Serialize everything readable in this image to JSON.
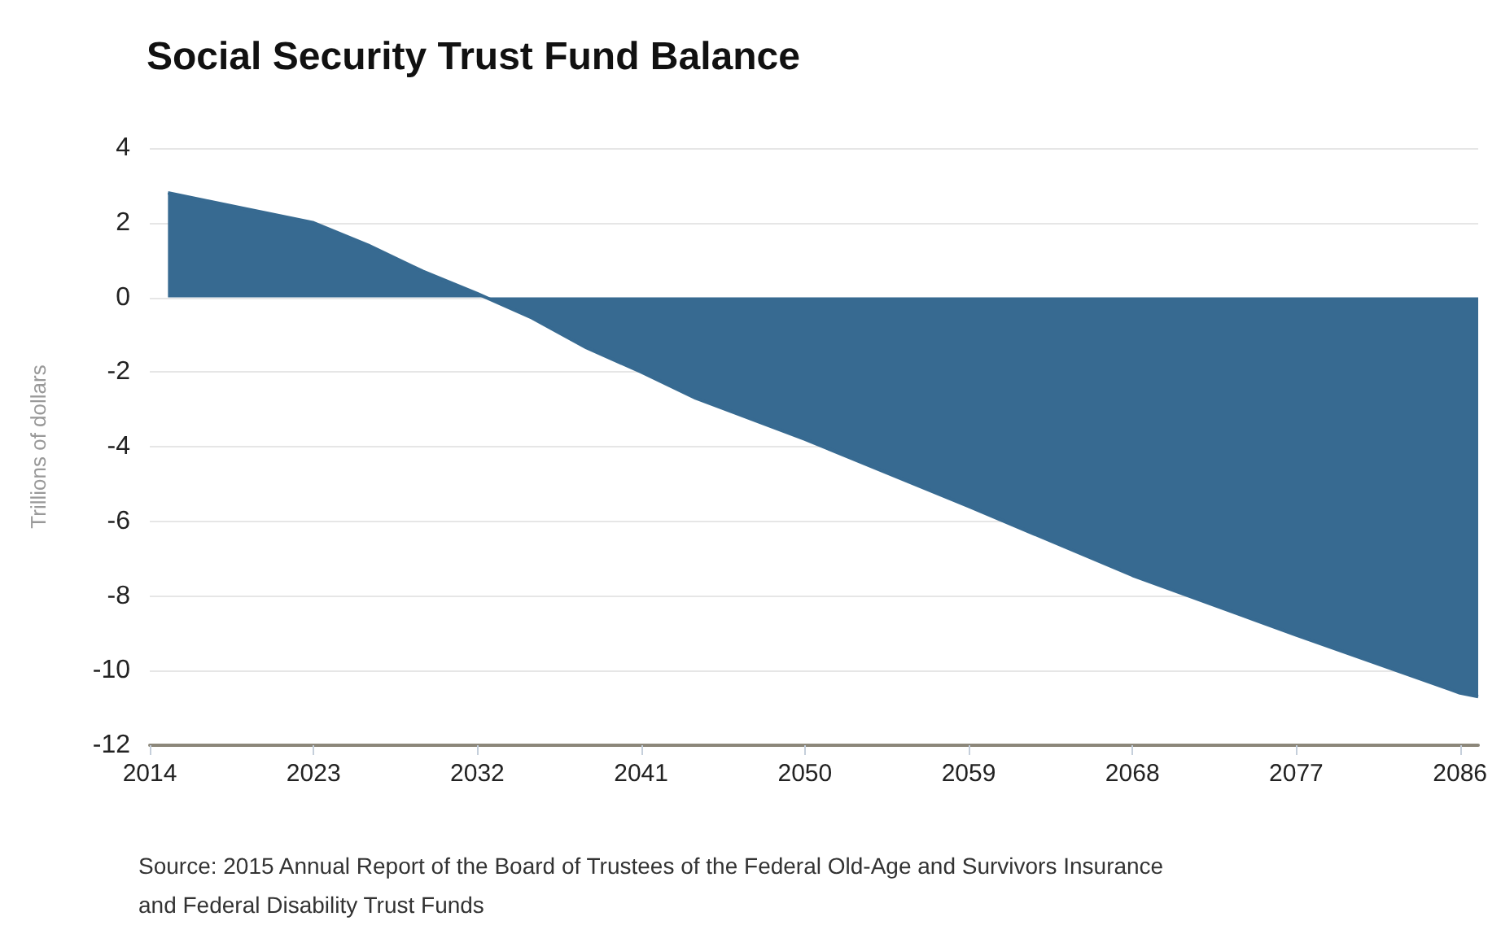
{
  "chart_data": {
    "type": "area",
    "title": "Social Security Trust Fund Balance",
    "ylabel": "Trillions of dollars",
    "x": [
      2015,
      2017,
      2020,
      2023,
      2026,
      2029,
      2032,
      2035,
      2038,
      2041,
      2044,
      2047,
      2050,
      2059,
      2068,
      2077,
      2086,
      2087
    ],
    "series": [
      {
        "color": "#376a91",
        "values": [
          2.8,
          2.6,
          2.3,
          2.0,
          1.4,
          0.7,
          0.1,
          -0.55,
          -1.35,
          -2.0,
          -2.7,
          -3.25,
          -3.8,
          -5.6,
          -7.45,
          -9.05,
          -10.6,
          -10.7
        ]
      }
    ],
    "xlim": [
      2014,
      2087
    ],
    "xticks": [
      2014,
      2023,
      2032,
      2041,
      2050,
      2059,
      2068,
      2077,
      2086
    ],
    "ylim": [
      -12,
      4
    ],
    "yticks": [
      -12,
      -10,
      -8,
      -6,
      -4,
      -2,
      0,
      2,
      4
    ],
    "grid": "y",
    "annotations": [
      "Source: 2015 Annual Report of the Board of Trustees of the Federal Old-Age and Survivors Insurance\nand Federal Disability Trust Funds"
    ]
  }
}
